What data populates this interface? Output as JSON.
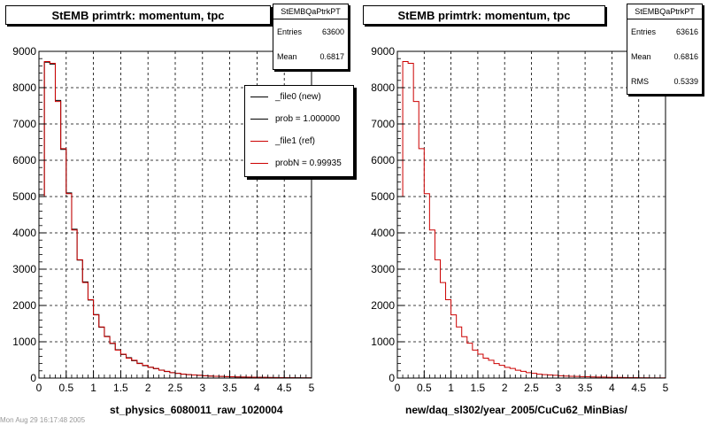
{
  "canvas": {
    "background": "#ffffff",
    "timestamp_text": "Mon Aug 29 16:17:48 2005"
  },
  "chart_data": [
    {
      "type": "histogram",
      "title": "StEMB primtrk: momentum, tpc",
      "xlabel": "st_physics_6080011_raw_1020004",
      "ylabel": "",
      "xlim": [
        0,
        5
      ],
      "ylim": [
        0,
        9000
      ],
      "grid": true,
      "x_ticks": [
        "0",
        "0.5",
        "1",
        "1.5",
        "2",
        "2.5",
        "3",
        "3.5",
        "4",
        "4.5",
        "5"
      ],
      "y_ticks": [
        "0",
        "1000",
        "2000",
        "3000",
        "4000",
        "5000",
        "6000",
        "7000",
        "8000",
        "9000"
      ],
      "bin_width": 0.1,
      "bin_edges_start": 0,
      "series": [
        {
          "name": "_file0 (new)",
          "color": "#000000",
          "values": [
            5050,
            8700,
            8650,
            7650,
            6300,
            5100,
            4100,
            3250,
            2650,
            2150,
            1750,
            1400,
            1150,
            950,
            780,
            650,
            560,
            480,
            410,
            340,
            300,
            260,
            220,
            180,
            150,
            130,
            110,
            95,
            85,
            75,
            65,
            55,
            50,
            45,
            40,
            35,
            30,
            28,
            25,
            22,
            20,
            18,
            16,
            14,
            12,
            10,
            9,
            8,
            7,
            6
          ]
        },
        {
          "name": "_file1 (ref)",
          "color": "#cc0000",
          "values": [
            5000,
            8720,
            8670,
            7620,
            6320,
            5080,
            4080,
            3260,
            2630,
            2160,
            1740,
            1410,
            1140,
            960,
            770,
            660,
            550,
            490,
            400,
            350,
            295,
            265,
            215,
            185,
            148,
            132,
            108,
            96,
            84,
            76,
            64,
            56,
            49,
            46,
            39,
            36,
            29,
            27,
            26,
            21,
            19,
            17,
            15,
            13,
            11,
            10,
            8,
            7,
            6,
            5
          ]
        }
      ],
      "stats": {
        "name": "StEMBQaPtrkPT",
        "rows": [
          {
            "label": "Entries",
            "value": "63600"
          },
          {
            "label": "Mean",
            "value": "0.6817"
          }
        ]
      },
      "legend": {
        "placement": "top-right",
        "entries": [
          {
            "label": "_file0 (new)",
            "color": "#000000"
          },
          {
            "label": "prob = 1.000000",
            "color": "#000000"
          },
          {
            "label": "_file1 (ref)",
            "color": "#cc0000"
          },
          {
            "label": "probN = 0.99935",
            "color": "#cc0000"
          }
        ]
      }
    },
    {
      "type": "histogram",
      "title": "StEMB primtrk: momentum, tpc",
      "xlabel": "new/daq_sl302/year_2005/CuCu62_MinBias/",
      "ylabel": "",
      "xlim": [
        0,
        5
      ],
      "ylim": [
        0,
        9000
      ],
      "grid": true,
      "x_ticks": [
        "0",
        "0.5",
        "1",
        "1.5",
        "2",
        "2.5",
        "3",
        "3.5",
        "4",
        "4.5",
        "5"
      ],
      "y_ticks": [
        "0",
        "1000",
        "2000",
        "3000",
        "4000",
        "5000",
        "6000",
        "7000",
        "8000",
        "9000"
      ],
      "bin_width": 0.1,
      "bin_edges_start": 0,
      "series": [
        {
          "name": "",
          "color": "#cc0000",
          "values": [
            5000,
            8720,
            8670,
            7620,
            6320,
            5080,
            4080,
            3260,
            2630,
            2160,
            1740,
            1410,
            1140,
            960,
            770,
            660,
            550,
            490,
            400,
            350,
            295,
            265,
            215,
            185,
            148,
            132,
            108,
            96,
            84,
            76,
            64,
            56,
            49,
            46,
            39,
            36,
            29,
            27,
            26,
            21,
            19,
            17,
            15,
            13,
            11,
            10,
            8,
            7,
            6,
            5
          ]
        }
      ],
      "stats": {
        "name": "StEMBQaPtrkPT",
        "rows": [
          {
            "label": "Entries",
            "value": "63616"
          },
          {
            "label": "Mean",
            "value": "0.6816"
          },
          {
            "label": "RMS",
            "value": "0.5339"
          }
        ]
      }
    }
  ]
}
